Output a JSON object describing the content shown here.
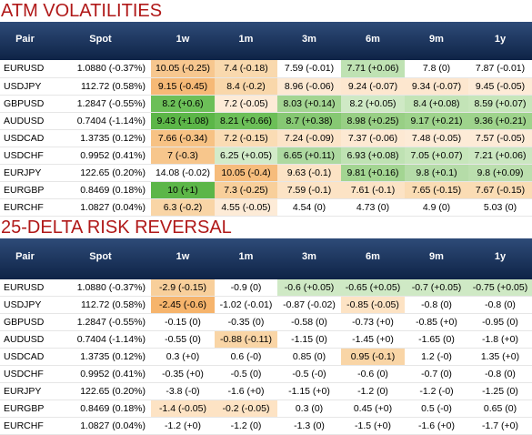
{
  "atm": {
    "title": "ATM VOLATILITIES",
    "headers": [
      "Pair",
      "Spot",
      "1w",
      "1m",
      "3m",
      "6m",
      "9m",
      "1y"
    ],
    "rows": [
      {
        "pair": "EURUSD",
        "spot": "1.0880 (-0.37%)",
        "cells": [
          {
            "text": "10.05 (-0.25)",
            "color": "#f7c78f"
          },
          {
            "text": "7.4 (-0.18)",
            "color": "#f9d9ae"
          },
          {
            "text": "7.59 (-0.01)",
            "color": "#ffffff"
          },
          {
            "text": "7.71 (+0.06)",
            "color": "#bfe2b3"
          },
          {
            "text": "7.8 (0)",
            "color": "#ffffff"
          },
          {
            "text": "7.87 (-0.01)",
            "color": "#ffffff"
          }
        ]
      },
      {
        "pair": "USDJPY",
        "spot": "112.72 (0.58%)",
        "cells": [
          {
            "text": "9.15 (-0.45)",
            "color": "#f6b976"
          },
          {
            "text": "8.4 (-0.2)",
            "color": "#f9d7aa"
          },
          {
            "text": "8.96 (-0.06)",
            "color": "#fde9d3"
          },
          {
            "text": "9.24 (-0.07)",
            "color": "#fde7cf"
          },
          {
            "text": "9.34 (-0.07)",
            "color": "#fde7cf"
          },
          {
            "text": "9.45 (-0.05)",
            "color": "#fdebd7"
          }
        ]
      },
      {
        "pair": "GBPUSD",
        "spot": "1.2847 (-0.55%)",
        "cells": [
          {
            "text": "8.2 (+0.6)",
            "color": "#6cbf58"
          },
          {
            "text": "7.2 (-0.05)",
            "color": "#fdebd7"
          },
          {
            "text": "8.03 (+0.14)",
            "color": "#a3d592"
          },
          {
            "text": "8.2 (+0.05)",
            "color": "#cfe9c5"
          },
          {
            "text": "8.4 (+0.08)",
            "color": "#c3e4b7"
          },
          {
            "text": "8.59 (+0.07)",
            "color": "#c7e6bb"
          }
        ]
      },
      {
        "pair": "AUDUSD",
        "spot": "0.7404 (-1.14%)",
        "cells": [
          {
            "text": "9.43 (+1.08)",
            "color": "#5cb648"
          },
          {
            "text": "8.21 (+0.66)",
            "color": "#6cbf58"
          },
          {
            "text": "8.7 (+0.38)",
            "color": "#86c873"
          },
          {
            "text": "8.98 (+0.25)",
            "color": "#98cf85"
          },
          {
            "text": "9.17 (+0.21)",
            "color": "#9ed38c"
          },
          {
            "text": "9.36 (+0.21)",
            "color": "#9ed38c"
          }
        ]
      },
      {
        "pair": "USDCAD",
        "spot": "1.3735 (0.12%)",
        "cells": [
          {
            "text": "7.66 (-0.34)",
            "color": "#f7c284"
          },
          {
            "text": "7.2 (-0.15)",
            "color": "#fadcb4"
          },
          {
            "text": "7.24 (-0.09)",
            "color": "#fce4c8"
          },
          {
            "text": "7.37 (-0.06)",
            "color": "#fde9d3"
          },
          {
            "text": "7.48 (-0.05)",
            "color": "#fdebd7"
          },
          {
            "text": "7.57 (-0.05)",
            "color": "#fdebd7"
          }
        ]
      },
      {
        "pair": "USDCHF",
        "spot": "0.9952 (0.41%)",
        "cells": [
          {
            "text": "7 (-0.3)",
            "color": "#f7c68c"
          },
          {
            "text": "6.25 (+0.05)",
            "color": "#d3ebc9"
          },
          {
            "text": "6.65 (+0.11)",
            "color": "#add9a0"
          },
          {
            "text": "6.93 (+0.08)",
            "color": "#bfe2b3"
          },
          {
            "text": "7.05 (+0.07)",
            "color": "#c7e6bb"
          },
          {
            "text": "7.21 (+0.06)",
            "color": "#cbe7c1"
          }
        ]
      },
      {
        "pair": "EURJPY",
        "spot": "122.65 (0.20%)",
        "cells": [
          {
            "text": "14.08 (-0.02)",
            "color": "#ffffff"
          },
          {
            "text": "10.05 (-0.4)",
            "color": "#f6bc7c"
          },
          {
            "text": "9.63 (-0.1)",
            "color": "#fce3c5"
          },
          {
            "text": "9.81 (+0.16)",
            "color": "#a3d592"
          },
          {
            "text": "9.8 (+0.1)",
            "color": "#b5dca8"
          },
          {
            "text": "9.8 (+0.09)",
            "color": "#bbdfae"
          }
        ]
      },
      {
        "pair": "EURGBP",
        "spot": "0.8469 (0.18%)",
        "cells": [
          {
            "text": "10 (+1)",
            "color": "#5cb648"
          },
          {
            "text": "7.3 (-0.25)",
            "color": "#f8cf9b"
          },
          {
            "text": "7.59 (-0.1)",
            "color": "#fce3c5"
          },
          {
            "text": "7.61 (-0.1)",
            "color": "#fce3c5"
          },
          {
            "text": "7.65 (-0.15)",
            "color": "#fadcb4"
          },
          {
            "text": "7.67 (-0.15)",
            "color": "#fadcb4"
          }
        ]
      },
      {
        "pair": "EURCHF",
        "spot": "1.0827 (0.04%)",
        "cells": [
          {
            "text": "6.3 (-0.2)",
            "color": "#f9d5a6"
          },
          {
            "text": "4.55 (-0.05)",
            "color": "#fdebd7"
          },
          {
            "text": "4.54 (0)",
            "color": "#ffffff"
          },
          {
            "text": "4.73 (0)",
            "color": "#ffffff"
          },
          {
            "text": "4.9 (0)",
            "color": "#ffffff"
          },
          {
            "text": "5.03 (0)",
            "color": "#ffffff"
          }
        ]
      }
    ]
  },
  "rr": {
    "title": "25-DELTA RISK REVERSAL",
    "headers": [
      "Pair",
      "Spot",
      "1w",
      "1m",
      "3m",
      "6m",
      "9m",
      "1y"
    ],
    "rows": [
      {
        "pair": "EURUSD",
        "spot": "1.0880 (-0.37%)",
        "cells": [
          {
            "text": "-2.9 (-0.15)",
            "color": "#f8cf9b"
          },
          {
            "text": "-0.9 (0)",
            "color": "#ffffff"
          },
          {
            "text": "-0.6 (+0.05)",
            "color": "#cfe9c5"
          },
          {
            "text": "-0.65 (+0.05)",
            "color": "#cfe9c5"
          },
          {
            "text": "-0.7 (+0.05)",
            "color": "#cfe9c5"
          },
          {
            "text": "-0.75 (+0.05)",
            "color": "#cfe9c5"
          }
        ]
      },
      {
        "pair": "USDJPY",
        "spot": "112.72 (0.58%)",
        "cells": [
          {
            "text": "-2.45 (-0.6)",
            "color": "#f6b46c"
          },
          {
            "text": "-1.02 (-0.01)",
            "color": "#ffffff"
          },
          {
            "text": "-0.87 (-0.02)",
            "color": "#ffffff"
          },
          {
            "text": "-0.85 (-0.05)",
            "color": "#fde3c4"
          },
          {
            "text": "-0.8 (0)",
            "color": "#ffffff"
          },
          {
            "text": "-0.8 (0)",
            "color": "#ffffff"
          }
        ]
      },
      {
        "pair": "GBPUSD",
        "spot": "1.2847 (-0.55%)",
        "cells": [
          {
            "text": "-0.15 (0)",
            "color": "#ffffff"
          },
          {
            "text": "-0.35 (0)",
            "color": "#ffffff"
          },
          {
            "text": "-0.58 (0)",
            "color": "#ffffff"
          },
          {
            "text": "-0.73 (+0)",
            "color": "#ffffff"
          },
          {
            "text": "-0.85 (+0)",
            "color": "#ffffff"
          },
          {
            "text": "-0.95 (0)",
            "color": "#ffffff"
          }
        ]
      },
      {
        "pair": "AUDUSD",
        "spot": "0.7404 (-1.14%)",
        "cells": [
          {
            "text": "-0.55 (0)",
            "color": "#ffffff"
          },
          {
            "text": "-0.88 (-0.11)",
            "color": "#f9d5a6"
          },
          {
            "text": "-1.15 (0)",
            "color": "#ffffff"
          },
          {
            "text": "-1.45 (+0)",
            "color": "#ffffff"
          },
          {
            "text": "-1.65 (0)",
            "color": "#ffffff"
          },
          {
            "text": "-1.8 (+0)",
            "color": "#ffffff"
          }
        ]
      },
      {
        "pair": "USDCAD",
        "spot": "1.3735 (0.12%)",
        "cells": [
          {
            "text": "0.3 (+0)",
            "color": "#ffffff"
          },
          {
            "text": "0.6 (-0)",
            "color": "#ffffff"
          },
          {
            "text": "0.85 (0)",
            "color": "#ffffff"
          },
          {
            "text": "0.95 (-0.1)",
            "color": "#f9d5a6"
          },
          {
            "text": "1.2 (-0)",
            "color": "#ffffff"
          },
          {
            "text": "1.35 (+0)",
            "color": "#ffffff"
          }
        ]
      },
      {
        "pair": "USDCHF",
        "spot": "0.9952 (0.41%)",
        "cells": [
          {
            "text": "-0.35 (+0)",
            "color": "#ffffff"
          },
          {
            "text": "-0.5 (0)",
            "color": "#ffffff"
          },
          {
            "text": "-0.5 (-0)",
            "color": "#ffffff"
          },
          {
            "text": "-0.6 (0)",
            "color": "#ffffff"
          },
          {
            "text": "-0.7 (0)",
            "color": "#ffffff"
          },
          {
            "text": "-0.8 (0)",
            "color": "#ffffff"
          }
        ]
      },
      {
        "pair": "EURJPY",
        "spot": "122.65 (0.20%)",
        "cells": [
          {
            "text": "-3.8 (-0)",
            "color": "#ffffff"
          },
          {
            "text": "-1.6 (+0)",
            "color": "#ffffff"
          },
          {
            "text": "-1.15 (+0)",
            "color": "#ffffff"
          },
          {
            "text": "-1.2 (0)",
            "color": "#ffffff"
          },
          {
            "text": "-1.2 (-0)",
            "color": "#ffffff"
          },
          {
            "text": "-1.25 (0)",
            "color": "#ffffff"
          }
        ]
      },
      {
        "pair": "EURGBP",
        "spot": "0.8469 (0.18%)",
        "cells": [
          {
            "text": "-1.4 (-0.05)",
            "color": "#fde3c4"
          },
          {
            "text": "-0.2 (-0.05)",
            "color": "#fde3c4"
          },
          {
            "text": "0.3 (0)",
            "color": "#ffffff"
          },
          {
            "text": "0.45 (+0)",
            "color": "#ffffff"
          },
          {
            "text": "0.5 (-0)",
            "color": "#ffffff"
          },
          {
            "text": "0.65 (0)",
            "color": "#ffffff"
          }
        ]
      },
      {
        "pair": "EURCHF",
        "spot": "1.0827 (0.04%)",
        "cells": [
          {
            "text": "-1.2 (+0)",
            "color": "#ffffff"
          },
          {
            "text": "-1.2 (0)",
            "color": "#ffffff"
          },
          {
            "text": "-1.3 (0)",
            "color": "#ffffff"
          },
          {
            "text": "-1.5 (+0)",
            "color": "#ffffff"
          },
          {
            "text": "-1.6 (+0)",
            "color": "#ffffff"
          },
          {
            "text": "-1.7 (+0)",
            "color": "#ffffff"
          }
        ]
      }
    ]
  }
}
